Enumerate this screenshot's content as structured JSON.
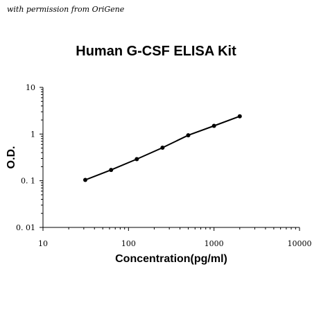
{
  "credit": "with permission from OriGene",
  "chart_data": {
    "type": "scatter",
    "title": "Human G-CSF ELISA Kit",
    "xlabel": "Concentration(pg/ml)",
    "ylabel": "O.D.",
    "xscale": "log",
    "yscale": "log",
    "xlim": [
      10,
      10000
    ],
    "ylim": [
      0.01,
      10
    ],
    "xticks": [
      10,
      100,
      1000,
      10000
    ],
    "xtick_labels": [
      "10",
      "100",
      "1000",
      "10000"
    ],
    "yticks": [
      0.01,
      0.1,
      1,
      10
    ],
    "ytick_labels": [
      "0. 01",
      "0. 1",
      "1",
      "10"
    ],
    "grid": false,
    "legend": "none",
    "series": [
      {
        "x": [
          31.25,
          62.5,
          125,
          250,
          500,
          1000,
          2000
        ],
        "y": [
          0.104,
          0.17,
          0.29,
          0.51,
          0.94,
          1.5,
          2.4
        ],
        "color": "#000000",
        "line": true
      }
    ]
  }
}
